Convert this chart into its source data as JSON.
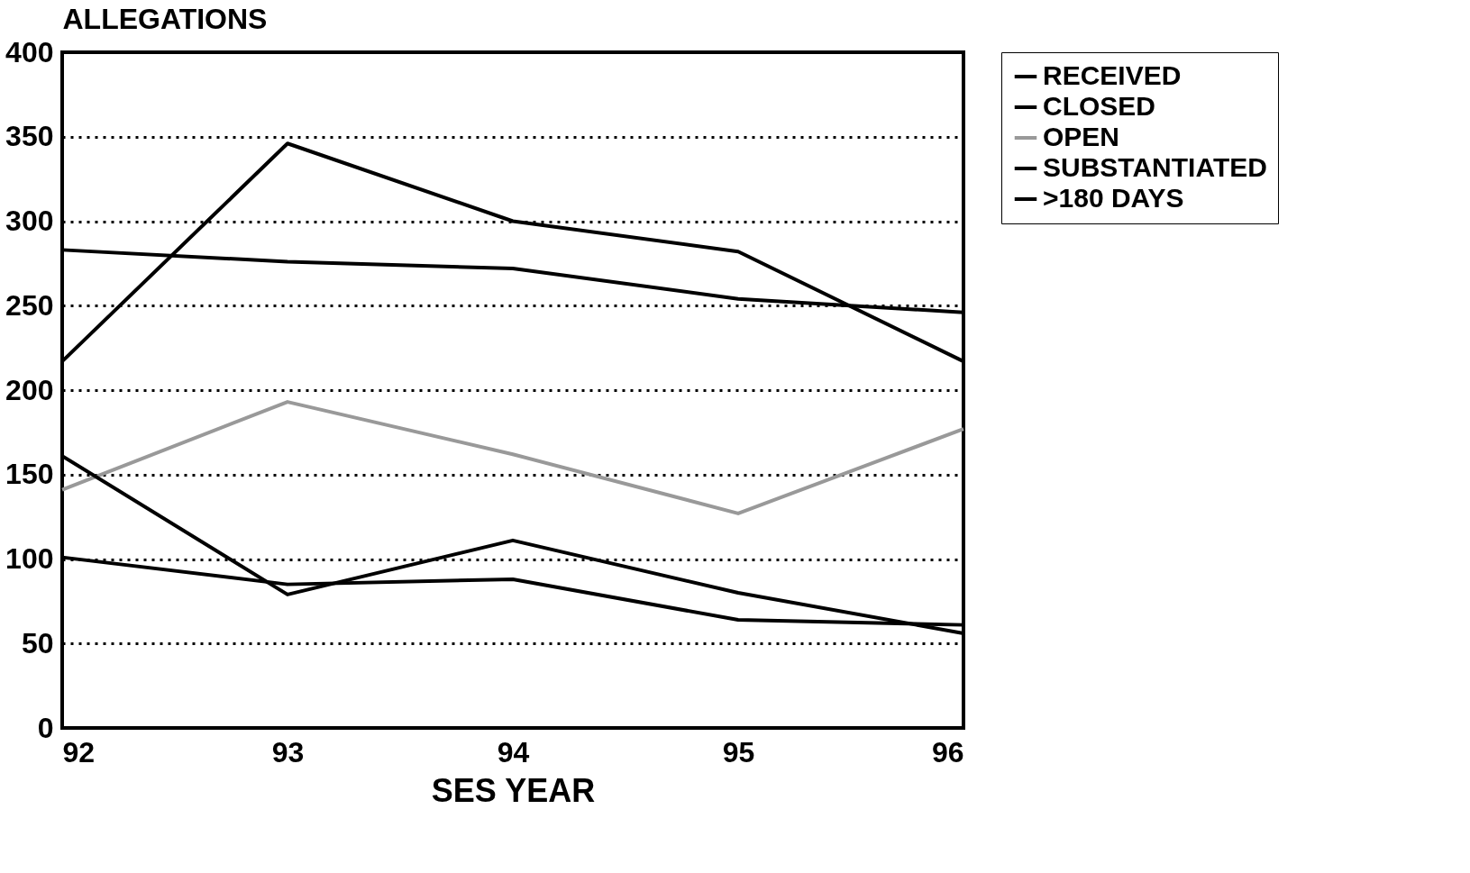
{
  "chart_data": {
    "type": "line",
    "ylabel": "ALLEGATIONS",
    "xlabel": "SES YEAR",
    "x": [
      92,
      93,
      94,
      95,
      96
    ],
    "xlim": [
      92,
      96
    ],
    "xticks": [
      92,
      93,
      94,
      95,
      96
    ],
    "ylim": [
      0,
      400
    ],
    "yticks": [
      0,
      50,
      100,
      150,
      200,
      250,
      300,
      350,
      400
    ],
    "grid": "y",
    "legend": "right",
    "series": [
      {
        "name": "RECEIVED",
        "color": "#000000",
        "values": [
          283,
          276,
          272,
          254,
          246
        ]
      },
      {
        "name": "CLOSED",
        "color": "#000000",
        "values": [
          217,
          346,
          300,
          282,
          217
        ]
      },
      {
        "name": "OPEN",
        "color": "#999999",
        "values": [
          141,
          193,
          162,
          127,
          177
        ]
      },
      {
        "name": "SUBSTANTIATED",
        "color": "#000000",
        "values": [
          161,
          79,
          111,
          80,
          56
        ]
      },
      {
        "name": ">180 DAYS",
        "color": "#000000",
        "values": [
          101,
          85,
          88,
          64,
          61
        ]
      }
    ]
  }
}
